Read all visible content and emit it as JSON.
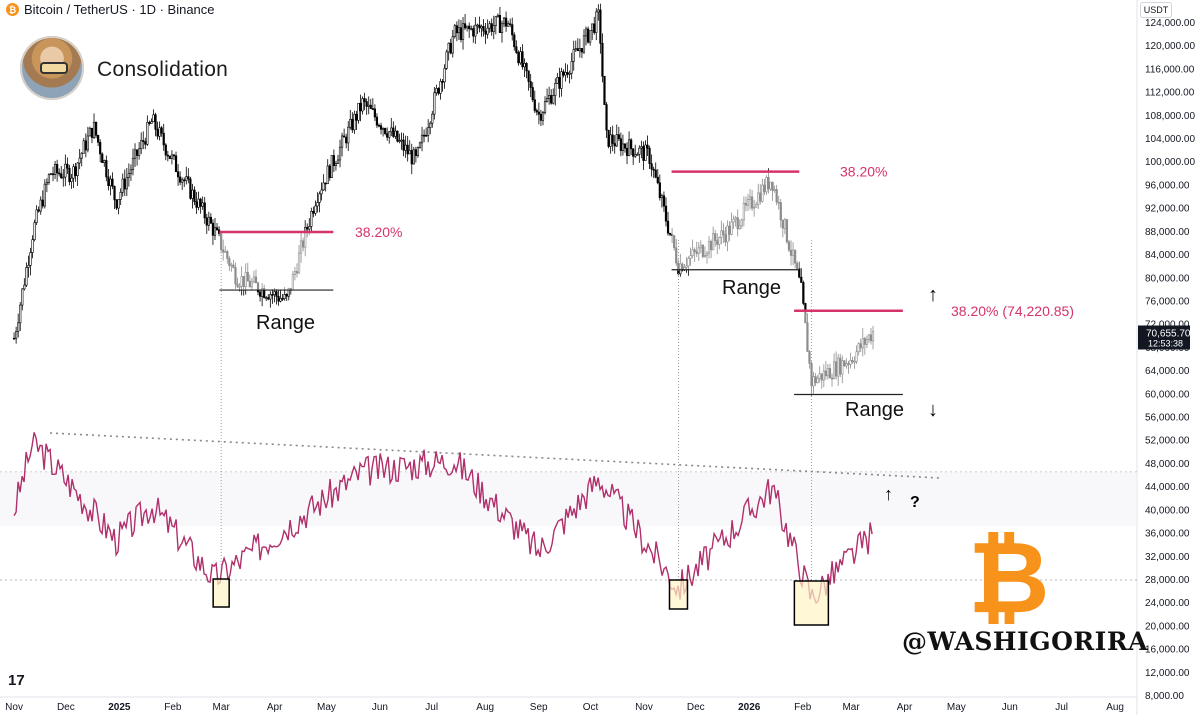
{
  "header": {
    "symbol_text": "Bitcoin / TetherUS · 1D · Binance",
    "coin_glyph": "₿"
  },
  "title": "Consolidation",
  "currency_badge": "USDT",
  "price_tag": {
    "price": "70,655.70",
    "countdown": "12:53:38"
  },
  "watermark": "@WASHIGORIRA",
  "btc_logo": "₿",
  "tv_logo": "17",
  "colors": {
    "fib": "#d6336c",
    "rsi": "#b0306c",
    "up": "#000000",
    "text": "#131722",
    "btc": "#f7931a",
    "box": "#fff3c4"
  },
  "chart_data": {
    "type": "candlestick",
    "title": "",
    "y_axis": {
      "unit": "USDT",
      "ticks": [
        "124,000.00",
        "120,000.00",
        "116,000.00",
        "112,000.00",
        "108,000.00",
        "104,000.00",
        "100,000.00",
        "96,000.00",
        "92,000.00",
        "88,000.00",
        "84,000.00",
        "80,000.00",
        "76,000.00",
        "72,000.00",
        "68,000.00",
        "64,000.00",
        "60,000.00",
        "56,000.00",
        "52,000.00",
        "48,000.00",
        "44,000.00",
        "40,000.00",
        "36,000.00",
        "32,000.00",
        "28,000.00",
        "24,000.00",
        "20,000.00",
        "16,000.00",
        "12,000.00",
        "8,000.00"
      ],
      "range": [
        8000,
        124000
      ]
    },
    "x_axis": {
      "ticks": [
        "Nov",
        "Dec",
        "2025",
        "Feb",
        "Mar",
        "Apr",
        "May",
        "Jun",
        "Jul",
        "Aug",
        "Sep",
        "Oct",
        "Nov",
        "Dec",
        "2026",
        "Feb",
        "Mar",
        "Apr",
        "May",
        "Jun",
        "Jul",
        "Aug"
      ]
    },
    "price_path_daily_close_approx": [
      {
        "date": "2024-11-01",
        "close": 69500
      },
      {
        "date": "2024-11-12",
        "close": 88000
      },
      {
        "date": "2024-11-22",
        "close": 98000
      },
      {
        "date": "2024-12-05",
        "close": 98000
      },
      {
        "date": "2024-12-17",
        "close": 106000
      },
      {
        "date": "2024-12-30",
        "close": 93000
      },
      {
        "date": "2025-01-20",
        "close": 107000
      },
      {
        "date": "2025-02-01",
        "close": 100000
      },
      {
        "date": "2025-02-25",
        "close": 88000
      },
      {
        "date": "2025-03-10",
        "close": 80000
      },
      {
        "date": "2025-04-08",
        "close": 76000
      },
      {
        "date": "2025-04-25",
        "close": 94000
      },
      {
        "date": "2025-05-22",
        "close": 110000
      },
      {
        "date": "2025-06-22",
        "close": 100000
      },
      {
        "date": "2025-07-14",
        "close": 122000
      },
      {
        "date": "2025-08-14",
        "close": 124000
      },
      {
        "date": "2025-09-01",
        "close": 108000
      },
      {
        "date": "2025-10-06",
        "close": 125000
      },
      {
        "date": "2025-10-10",
        "close": 104000
      },
      {
        "date": "2025-11-04",
        "close": 101000
      },
      {
        "date": "2025-11-21",
        "close": 82000
      },
      {
        "date": "2025-12-20",
        "close": 88000
      },
      {
        "date": "2026-01-14",
        "close": 97000
      },
      {
        "date": "2026-01-31",
        "close": 78000
      },
      {
        "date": "2026-02-06",
        "close": 62000
      },
      {
        "date": "2026-03-01",
        "close": 66000
      },
      {
        "date": "2026-03-14",
        "close": 70655
      }
    ],
    "current_price": 70655.7,
    "rsi_path_approx": [
      {
        "date": "2024-11-01",
        "rsi": 58
      },
      {
        "date": "2024-11-12",
        "rsi": 88
      },
      {
        "date": "2024-12-05",
        "rsi": 68
      },
      {
        "date": "2024-12-30",
        "rsi": 45
      },
      {
        "date": "2025-01-20",
        "rsi": 60
      },
      {
        "date": "2025-02-25",
        "rsi": 28
      },
      {
        "date": "2025-03-10",
        "rsi": 35
      },
      {
        "date": "2025-05-22",
        "rsi": 75
      },
      {
        "date": "2025-07-14",
        "rsi": 80
      },
      {
        "date": "2025-09-01",
        "rsi": 40
      },
      {
        "date": "2025-10-06",
        "rsi": 72
      },
      {
        "date": "2025-11-21",
        "rsi": 24
      },
      {
        "date": "2026-01-14",
        "rsi": 68
      },
      {
        "date": "2026-02-06",
        "rsi": 20
      },
      {
        "date": "2026-03-14",
        "rsi": 48
      }
    ],
    "rsi_oversold_boxes": [
      "2025-03-01",
      "2025-11-21",
      "2026-02-06"
    ],
    "annotations": {
      "range_label": "Range",
      "fib_1": "38.20%",
      "fib_2": "38.20%",
      "fib_3": "38.20% (74,220.85)",
      "question": "?",
      "arrow_up": "↑",
      "arrow_down": "↓"
    },
    "grid": false,
    "legend": "none"
  }
}
